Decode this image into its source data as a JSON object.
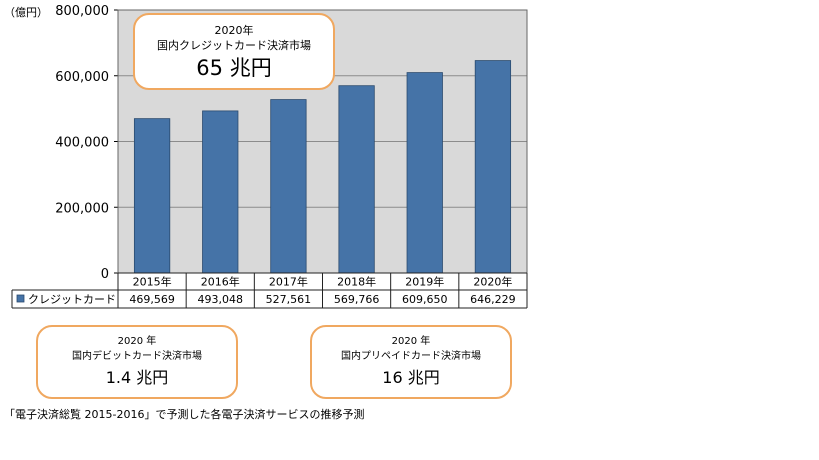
{
  "chart_data": {
    "type": "bar",
    "unit_label": "（億円）",
    "categories": [
      "2015年",
      "2016年",
      "2017年",
      "2018年",
      "2019年",
      "2020年"
    ],
    "series": [
      {
        "name": "クレジットカード",
        "values": [
          469569,
          493048,
          527561,
          569766,
          609650,
          646229
        ],
        "value_labels": [
          "469,569",
          "493,048",
          "527,561",
          "569,766",
          "609,650",
          "646,229"
        ],
        "color": "#4573a7"
      }
    ],
    "ylim": [
      0,
      800000
    ],
    "y_ticks": [
      0,
      200000,
      400000,
      600000,
      800000
    ],
    "y_tick_labels": [
      "0",
      "200,000",
      "400,000",
      "600,000",
      "800,000"
    ],
    "plot_background": "#d9d9d9",
    "grid": true,
    "data_table": true
  },
  "callouts": {
    "main": {
      "year": "2020年",
      "market": "国内クレジットカード決済市場",
      "value": "65 兆円"
    },
    "debit": {
      "year": "2020 年",
      "market": "国内デビットカード決済市場",
      "value": "1.4 兆円"
    },
    "prepaid": {
      "year": "2020 年",
      "market": "国内プリペイドカード決済市場",
      "value": "16 兆円"
    }
  },
  "footnote": "「電子決済総覧 2015-2016」で予測した各電子決済サービスの推移予測",
  "colors": {
    "callout_border": "#f0a860",
    "bar": "#4573a7",
    "plot_background": "#d9d9d9"
  }
}
